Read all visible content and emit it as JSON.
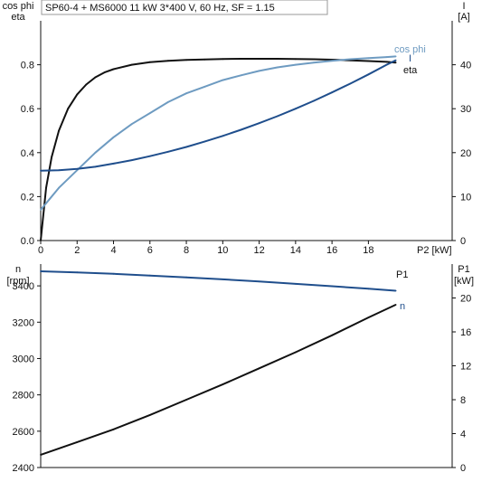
{
  "header": {
    "title": "SP60-4 + MS6000   11 kW   3*400 V, 60 Hz, SF = 1.15"
  },
  "colors": {
    "background": "#ffffff",
    "axis": "#111111",
    "eta": "#111111",
    "cos_phi": "#6e9bc1",
    "current": "#1f4e8c",
    "speed": "#1f4e8c",
    "p1": "#111111",
    "label_cos_phi": "#6e9bc1",
    "label_current": "#1f4e8c"
  },
  "chart_data": [
    {
      "type": "line",
      "title": "SP60-4 + MS6000   11 kW   3*400 V, 60 Hz, SF = 1.15",
      "xlabel": "P2 [kW]",
      "xlim": [
        0,
        22.6
      ],
      "xticks": [
        0,
        2,
        4,
        6,
        8,
        10,
        12,
        14,
        16,
        18
      ],
      "ylabel_left_line1": "cos phi",
      "ylabel_left_line2": "eta",
      "ylim_left": [
        0,
        1.0
      ],
      "yticks_left": [
        "0.0",
        "0.2",
        "0.4",
        "0.6",
        "0.8"
      ],
      "ylabel_right_line1": "I",
      "ylabel_right_line2": "[A]",
      "ylim_right": [
        0,
        50
      ],
      "yticks_right": [
        "0",
        "10",
        "20",
        "30",
        "40"
      ],
      "grid": false,
      "series": [
        {
          "name": "eta",
          "axis": "left",
          "x": [
            0,
            0.3,
            0.6,
            1.0,
            1.5,
            2.0,
            2.5,
            3.0,
            3.5,
            4.0,
            5.0,
            6.0,
            7.0,
            8.0,
            9.0,
            10.0,
            11.0,
            12.0,
            13.0,
            14.0,
            15.0,
            16.0,
            17.0,
            18.0,
            19.0,
            19.5
          ],
          "y": [
            0.0,
            0.24,
            0.38,
            0.5,
            0.6,
            0.665,
            0.71,
            0.743,
            0.765,
            0.78,
            0.8,
            0.812,
            0.818,
            0.822,
            0.824,
            0.826,
            0.827,
            0.827,
            0.827,
            0.826,
            0.825,
            0.823,
            0.82,
            0.817,
            0.813,
            0.81
          ]
        },
        {
          "name": "cos phi",
          "axis": "left",
          "x": [
            0,
            0.5,
            1.0,
            2.0,
            3.0,
            4.0,
            5.0,
            6.0,
            7.0,
            8.0,
            9.0,
            10.0,
            11.0,
            12.0,
            13.0,
            14.0,
            15.0,
            16.0,
            17.0,
            18.0,
            19.0,
            19.5
          ],
          "y": [
            0.14,
            0.19,
            0.24,
            0.32,
            0.4,
            0.47,
            0.53,
            0.58,
            0.63,
            0.67,
            0.7,
            0.73,
            0.752,
            0.772,
            0.788,
            0.8,
            0.81,
            0.818,
            0.825,
            0.83,
            0.835,
            0.838
          ]
        },
        {
          "name": "I",
          "axis": "right",
          "x": [
            0,
            1,
            2,
            3,
            4,
            5,
            6,
            7,
            8,
            9,
            10,
            11,
            12,
            13,
            14,
            15,
            16,
            17,
            18,
            19,
            19.5
          ],
          "y": [
            15.9,
            16.0,
            16.3,
            16.8,
            17.5,
            18.3,
            19.2,
            20.2,
            21.3,
            22.5,
            23.8,
            25.2,
            26.7,
            28.3,
            30.0,
            31.8,
            33.7,
            35.7,
            37.8,
            40.0,
            41.0
          ]
        }
      ]
    },
    {
      "type": "line",
      "xlim": [
        0,
        22.6
      ],
      "ylabel_left_line1": "n",
      "ylabel_left_line2": "[rpm]",
      "ylim_left": [
        2400,
        3520
      ],
      "yticks_left": [
        "2400",
        "2600",
        "2800",
        "3000",
        "3200",
        "3400"
      ],
      "ylabel_right_line1": "P1",
      "ylabel_right_line2": "[kW]",
      "ylim_right": [
        0,
        24
      ],
      "yticks_right": [
        "0",
        "4",
        "8",
        "12",
        "16",
        "20"
      ],
      "grid": false,
      "series": [
        {
          "name": "n",
          "axis": "left",
          "x": [
            0,
            2,
            4,
            6,
            8,
            10,
            12,
            14,
            16,
            18,
            19.5
          ],
          "y": [
            3480,
            3474,
            3466,
            3457,
            3447,
            3436,
            3424,
            3411,
            3398,
            3384,
            3373
          ]
        },
        {
          "name": "P1",
          "axis": "right",
          "x": [
            0,
            2,
            4,
            6,
            8,
            10,
            12,
            14,
            16,
            18,
            19.5
          ],
          "y": [
            1.5,
            3.0,
            4.5,
            6.2,
            8.0,
            9.8,
            11.7,
            13.6,
            15.6,
            17.7,
            19.2
          ]
        }
      ]
    }
  ]
}
